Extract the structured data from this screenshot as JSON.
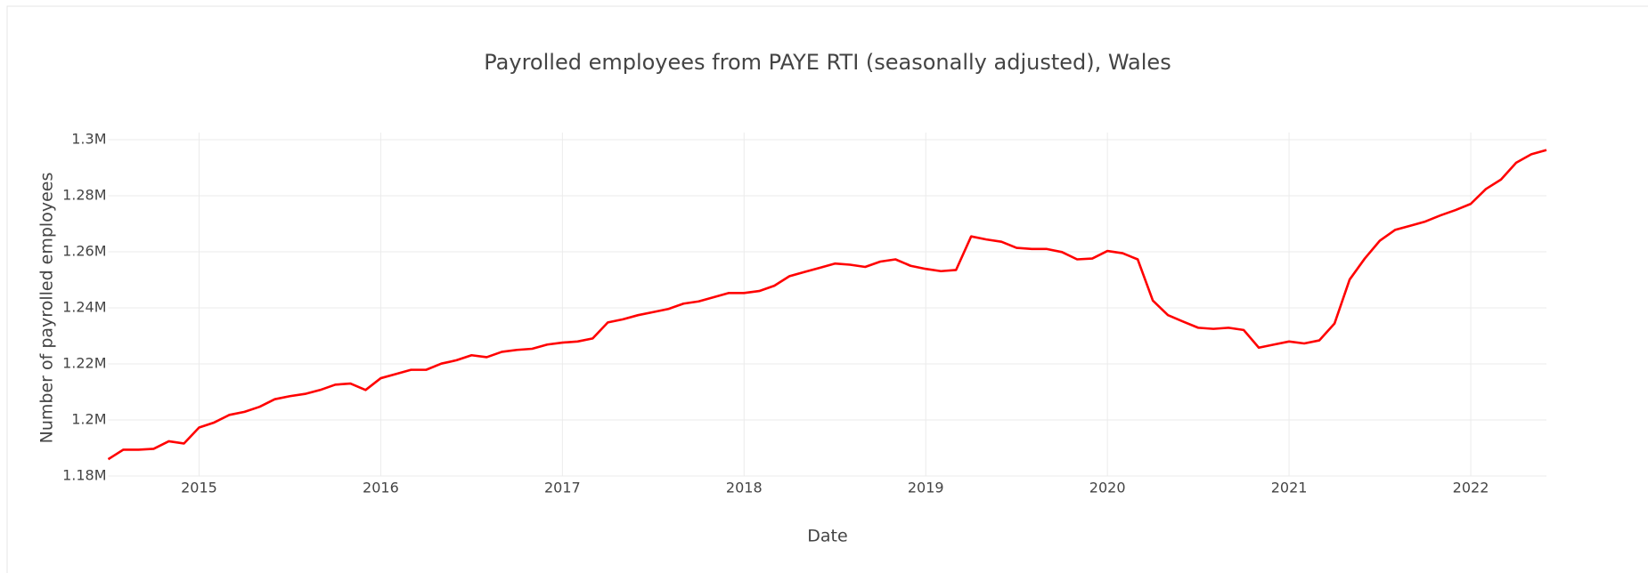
{
  "chart_data": {
    "type": "line",
    "title": "Payrolled employees from PAYE RTI (seasonally adjusted), Wales",
    "x_label": "Date",
    "y_label": "Number of payrolled employees",
    "x": [
      "2014-07",
      "2014-08",
      "2014-09",
      "2014-10",
      "2014-11",
      "2014-12",
      "2015-01",
      "2015-02",
      "2015-03",
      "2015-04",
      "2015-05",
      "2015-06",
      "2015-07",
      "2015-08",
      "2015-09",
      "2015-10",
      "2015-11",
      "2015-12",
      "2016-01",
      "2016-02",
      "2016-03",
      "2016-04",
      "2016-05",
      "2016-06",
      "2016-07",
      "2016-08",
      "2016-09",
      "2016-10",
      "2016-11",
      "2016-12",
      "2017-01",
      "2017-02",
      "2017-03",
      "2017-04",
      "2017-05",
      "2017-06",
      "2017-07",
      "2017-08",
      "2017-09",
      "2017-10",
      "2017-11",
      "2017-12",
      "2018-01",
      "2018-02",
      "2018-03",
      "2018-04",
      "2018-05",
      "2018-06",
      "2018-07",
      "2018-08",
      "2018-09",
      "2018-10",
      "2018-11",
      "2018-12",
      "2019-01",
      "2019-02",
      "2019-03",
      "2019-04",
      "2019-05",
      "2019-06",
      "2019-07",
      "2019-08",
      "2019-09",
      "2019-10",
      "2019-11",
      "2019-12",
      "2020-01",
      "2020-02",
      "2020-03",
      "2020-04",
      "2020-05",
      "2020-06",
      "2020-07",
      "2020-08",
      "2020-09",
      "2020-10",
      "2020-11",
      "2020-12",
      "2021-01",
      "2021-02",
      "2021-03",
      "2021-04",
      "2021-05",
      "2021-06",
      "2021-07",
      "2021-08",
      "2021-09",
      "2021-10",
      "2021-11",
      "2021-12",
      "2022-01",
      "2022-02",
      "2022-03",
      "2022-04",
      "2022-05",
      "2022-06"
    ],
    "series": [
      {
        "name": "Payrolled employees",
        "color": "#ff0000",
        "values": [
          1186000,
          1189400,
          1189400,
          1189700,
          1192400,
          1191600,
          1197300,
          1199100,
          1201800,
          1202900,
          1204700,
          1207400,
          1208500,
          1209300,
          1210700,
          1212600,
          1213000,
          1210700,
          1214900,
          1216400,
          1217900,
          1217900,
          1220100,
          1221300,
          1223100,
          1222400,
          1224300,
          1225000,
          1225400,
          1226900,
          1227600,
          1228000,
          1229100,
          1234800,
          1235900,
          1237400,
          1238500,
          1239600,
          1241500,
          1242300,
          1243800,
          1245300,
          1245300,
          1246000,
          1247900,
          1251300,
          1252800,
          1254300,
          1255800,
          1255400,
          1254600,
          1256500,
          1257300,
          1255000,
          1253900,
          1253100,
          1253500,
          1265500,
          1264400,
          1263600,
          1261400,
          1261000,
          1261000,
          1259900,
          1257300,
          1257600,
          1260300,
          1259500,
          1257300,
          1242600,
          1237400,
          1235100,
          1232900,
          1232500,
          1232900,
          1232100,
          1225800,
          1226900,
          1228000,
          1227300,
          1228400,
          1234400,
          1250100,
          1257600,
          1264000,
          1267800,
          1269300,
          1270800,
          1273000,
          1274900,
          1277100,
          1282400,
          1285800,
          1291800,
          1294800,
          1296300
        ]
      }
    ],
    "xlim": [
      "2014-07",
      "2022-06"
    ],
    "xticks": [
      {
        "value": "2015-01",
        "label": "2015"
      },
      {
        "value": "2016-01",
        "label": "2016"
      },
      {
        "value": "2017-01",
        "label": "2017"
      },
      {
        "value": "2018-01",
        "label": "2018"
      },
      {
        "value": "2019-01",
        "label": "2019"
      },
      {
        "value": "2020-01",
        "label": "2020"
      },
      {
        "value": "2021-01",
        "label": "2021"
      },
      {
        "value": "2022-01",
        "label": "2022"
      }
    ],
    "ylim": [
      1180000,
      1300000
    ],
    "yticks": [
      {
        "value": 1180000,
        "label": "1.18M"
      },
      {
        "value": 1200000,
        "label": "1.2M"
      },
      {
        "value": 1220000,
        "label": "1.22M"
      },
      {
        "value": 1240000,
        "label": "1.24M"
      },
      {
        "value": 1260000,
        "label": "1.26M"
      },
      {
        "value": 1280000,
        "label": "1.28M"
      },
      {
        "value": 1300000,
        "label": "1.3M"
      }
    ],
    "grid": true
  }
}
